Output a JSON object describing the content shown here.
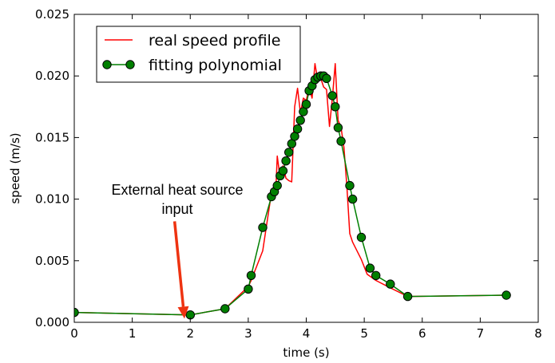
{
  "chart_data": {
    "type": "line",
    "xlabel": "time (s)",
    "ylabel": "speed (m/s)",
    "xlim": [
      0,
      8
    ],
    "ylim": [
      0,
      0.025
    ],
    "x_ticks": [
      "0",
      "1",
      "2",
      "3",
      "4",
      "5",
      "6",
      "7",
      "8"
    ],
    "y_ticks": [
      "0.000",
      "0.005",
      "0.010",
      "0.015",
      "0.020",
      "0.025"
    ],
    "grid": false,
    "legend_position": "top-left",
    "series": [
      {
        "name": "real speed profile",
        "color": "#ff0000",
        "marker": "none",
        "x": [
          0.0,
          2.0,
          2.6,
          3.0,
          3.05,
          3.25,
          3.4,
          3.48,
          3.5,
          3.55,
          3.6,
          3.65,
          3.7,
          3.75,
          3.8,
          3.85,
          3.9,
          3.95,
          4.0,
          4.05,
          4.1,
          4.15,
          4.2,
          4.25,
          4.3,
          4.35,
          4.4,
          4.45,
          4.5,
          4.55,
          4.6,
          4.65,
          4.7,
          4.75,
          4.8,
          4.95,
          5.05,
          5.2,
          5.45,
          5.75,
          7.45
        ],
        "y": [
          0.0008,
          0.0006,
          0.0011,
          0.0029,
          0.0034,
          0.0058,
          0.0105,
          0.0112,
          0.0135,
          0.0117,
          0.0127,
          0.0117,
          0.0115,
          0.0114,
          0.0175,
          0.019,
          0.017,
          0.0182,
          0.018,
          0.0191,
          0.0182,
          0.021,
          0.0196,
          0.0198,
          0.0191,
          0.0189,
          0.0159,
          0.0182,
          0.021,
          0.0164,
          0.0158,
          0.0142,
          0.0111,
          0.0072,
          0.0065,
          0.0051,
          0.0039,
          0.0034,
          0.0028,
          0.0021,
          0.0022
        ]
      },
      {
        "name": "fitting polynomial",
        "color": "#007f00",
        "marker": "circle",
        "x": [
          0.0,
          2.0,
          2.6,
          3.0,
          3.05,
          3.25,
          3.4,
          3.45,
          3.5,
          3.55,
          3.6,
          3.65,
          3.7,
          3.75,
          3.8,
          3.85,
          3.9,
          3.95,
          4.0,
          4.05,
          4.1,
          4.15,
          4.2,
          4.25,
          4.3,
          4.35,
          4.45,
          4.5,
          4.55,
          4.6,
          4.75,
          4.8,
          4.95,
          5.1,
          5.2,
          5.45,
          5.75,
          7.45
        ],
        "y": [
          0.0008,
          0.0006,
          0.0011,
          0.0027,
          0.0038,
          0.0077,
          0.0102,
          0.0106,
          0.0111,
          0.0119,
          0.0123,
          0.0131,
          0.0138,
          0.0145,
          0.0151,
          0.0157,
          0.0164,
          0.0171,
          0.0177,
          0.0188,
          0.0192,
          0.0197,
          0.0199,
          0.02,
          0.02,
          0.0198,
          0.0184,
          0.0175,
          0.0158,
          0.0147,
          0.0111,
          0.01,
          0.0069,
          0.0044,
          0.0038,
          0.0031,
          0.0021,
          0.0022
        ]
      }
    ],
    "annotations": [
      {
        "text_lines": [
          "External heat source",
          "input"
        ],
        "arrow_color": "#ee3311",
        "arrow_tip": [
          1.9,
          0.0003
        ],
        "arrow_tail": [
          1.73,
          0.0082
        ]
      }
    ]
  }
}
